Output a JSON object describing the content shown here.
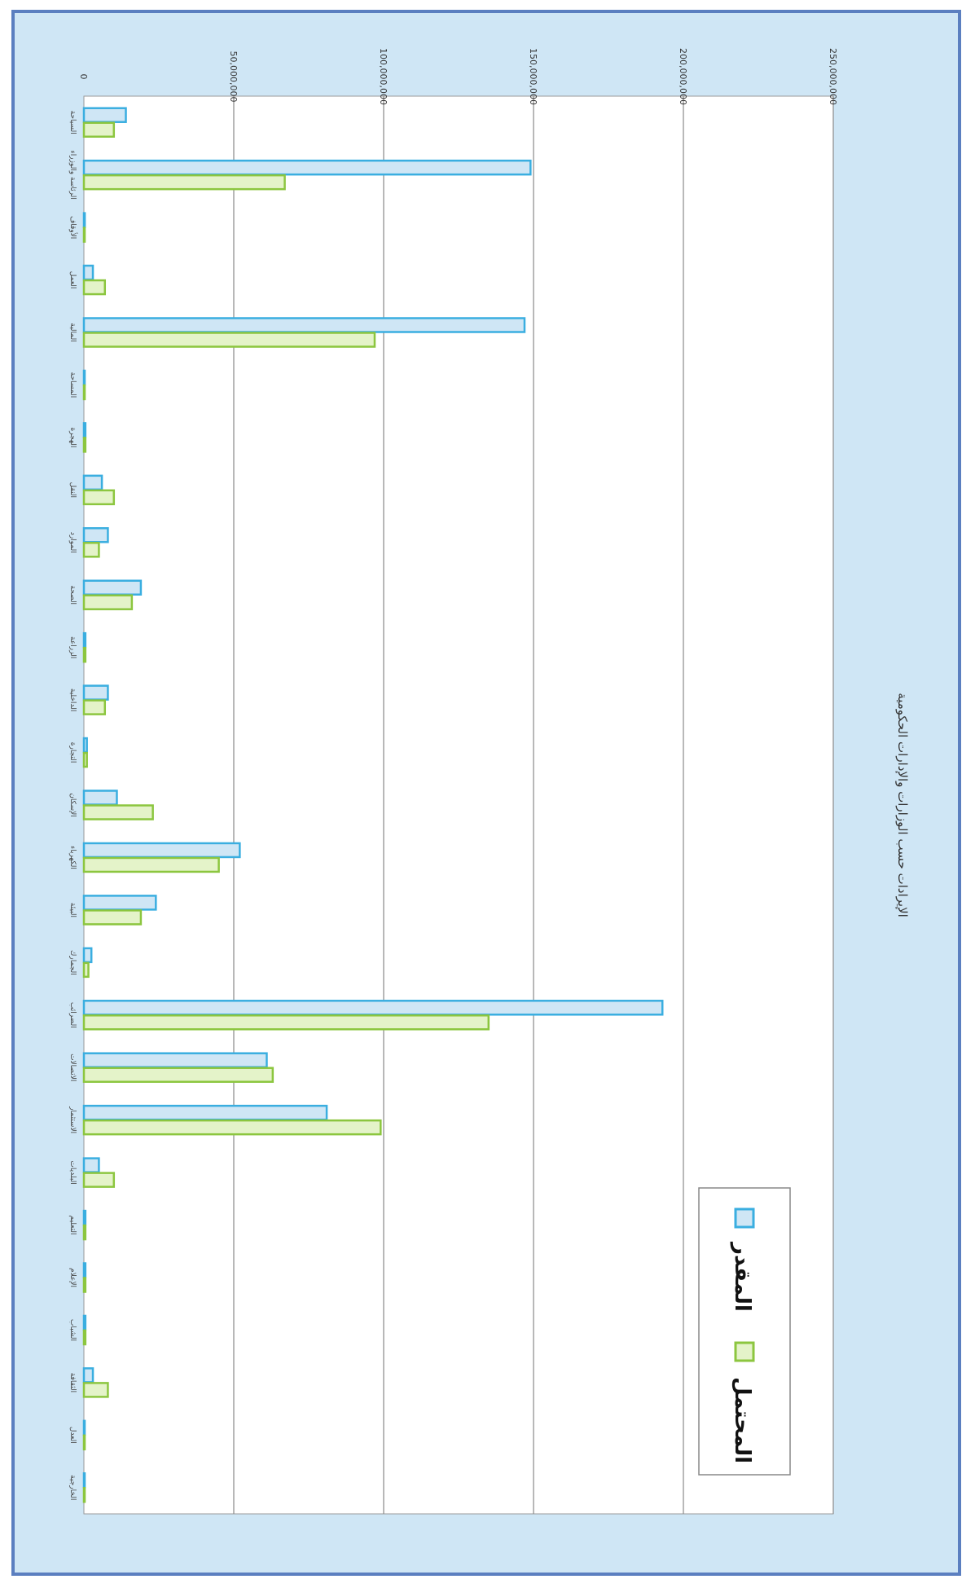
{
  "chart_data": {
    "type": "bar",
    "orientation": "horizontal-bars-page-rotated",
    "title": "الإيرادات حسب الوزارات والإدارات الحكومية",
    "xlabel": "",
    "ylabel": "",
    "ylim": [
      0,
      250000000
    ],
    "ticks": [
      "0",
      "50,000,000",
      "100,000,000",
      "150,000,000",
      "200,000,000",
      "250,000,000"
    ],
    "tick_values": [
      0,
      50000000,
      100000000,
      150000000,
      200000000,
      250000000
    ],
    "grid": true,
    "legend_position": "bottom-right",
    "categories": [
      "السياحة",
      "الرئاسة والوزراء",
      "الأوقاف",
      "العمل",
      "المالية",
      "المساحة",
      "الهجرة",
      "النقل",
      "الموارد",
      "الصحة",
      "الزراعة",
      "الداخلية",
      "التجارة",
      "الإسكان",
      "الكهرباء",
      "البيئة",
      "الجمارك",
      "الضرائب",
      "الاتصالات",
      "الاستثمار",
      "البلديات",
      "التعليم",
      "الإعلام",
      "الشباب",
      "الثقافة",
      "العدل",
      "الخارجية"
    ],
    "series": [
      {
        "name": "المقدر",
        "color": "#3aaee0",
        "values": [
          14000000,
          149000000,
          300000,
          3000000,
          147000000,
          0,
          500000,
          6000000,
          8000000,
          19000000,
          500000,
          8000000,
          1000000,
          11000000,
          52000000,
          24000000,
          2500000,
          193000000,
          61000000,
          81000000,
          5000000,
          500000,
          500000,
          500000,
          3000000,
          0,
          0
        ]
      },
      {
        "name": "المحتمل",
        "color": "#8cc63f",
        "values": [
          10000000,
          67000000,
          200000,
          7000000,
          97000000,
          0,
          500000,
          10000000,
          5000000,
          16000000,
          500000,
          7000000,
          1000000,
          23000000,
          45000000,
          19000000,
          1500000,
          135000000,
          63000000,
          99000000,
          10000000,
          500000,
          500000,
          500000,
          8000000,
          0,
          0
        ]
      }
    ]
  }
}
